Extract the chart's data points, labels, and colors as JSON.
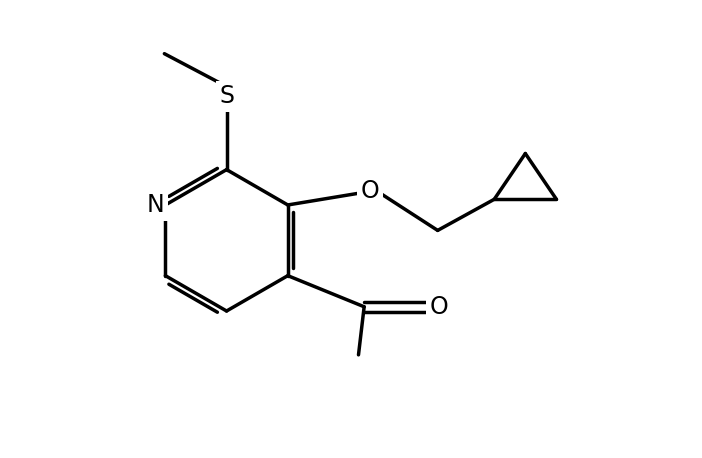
{
  "background_color": "#ffffff",
  "line_color": "#000000",
  "line_width": 2.5,
  "font_size_atom": 17,
  "figsize": [
    7.02,
    4.58
  ],
  "dpi": 100,
  "xlim": [
    0,
    10
  ],
  "ylim": [
    0,
    8
  ]
}
